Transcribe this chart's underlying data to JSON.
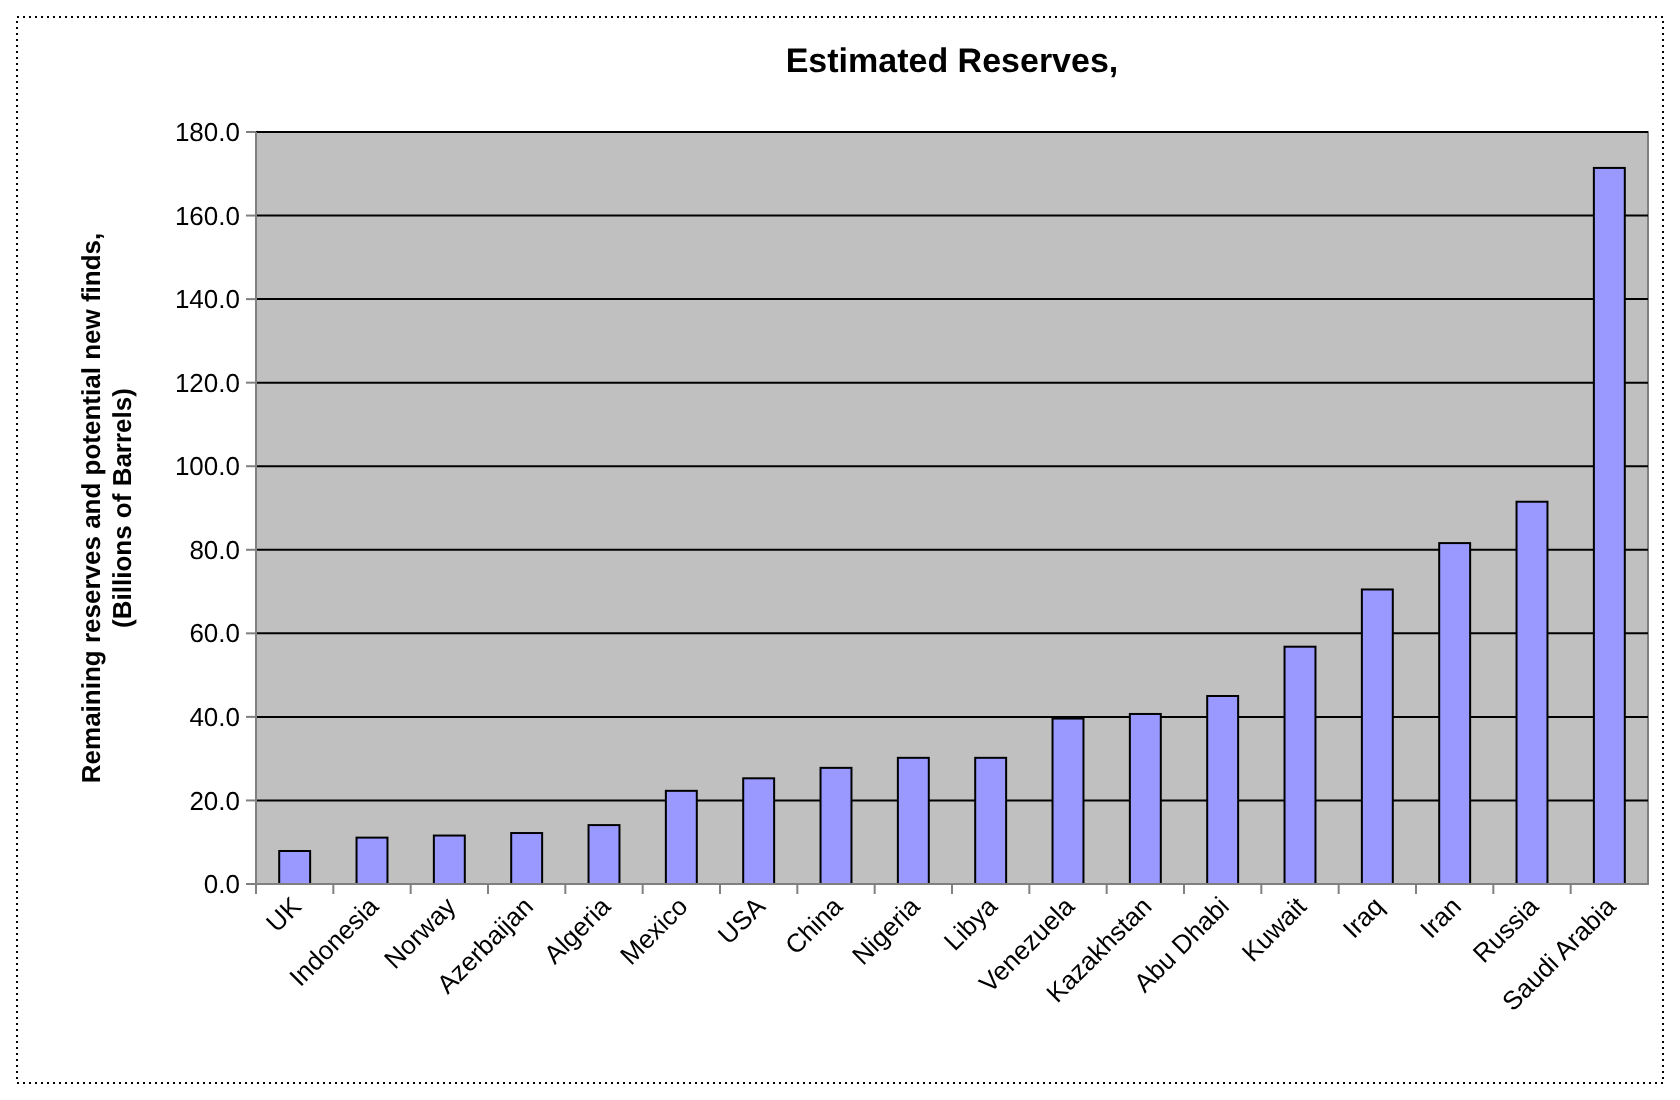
{
  "chart_data": {
    "type": "bar",
    "title": "Estimated Reserves,",
    "ylabel": "Remaining reserves and potential new finds,\n(Billions of Barrels)",
    "categories": [
      "UK",
      "Indonesia",
      "Norway",
      "Azerbaijan",
      "Algeria",
      "Mexico",
      "USA",
      "China",
      "Nigeria",
      "Libya",
      "Venezuela",
      "Kazakhstan",
      "Abu Dhabi",
      "Kuwait",
      "Iraq",
      "Iran",
      "Russia",
      "Saudi Arabia"
    ],
    "values": [
      7.9,
      11.1,
      11.6,
      12.2,
      14.1,
      22.3,
      25.3,
      27.8,
      30.2,
      30.2,
      39.6,
      40.7,
      45.0,
      56.8,
      70.5,
      81.6,
      91.5,
      171.4
    ],
    "color": "#9999ff",
    "ylim": [
      0,
      180
    ],
    "yticks": [
      {
        "value": 0,
        "label": "0.0"
      },
      {
        "value": 20,
        "label": "20.0"
      },
      {
        "value": 40,
        "label": "40.0"
      },
      {
        "value": 60,
        "label": "60.0"
      },
      {
        "value": 80,
        "label": "80.0"
      },
      {
        "value": 100,
        "label": "100.0"
      },
      {
        "value": 120,
        "label": "120.0"
      },
      {
        "value": 140,
        "label": "140.0"
      },
      {
        "value": 160,
        "label": "160.0"
      },
      {
        "value": 180,
        "label": "180.0"
      }
    ],
    "grid": "y"
  }
}
